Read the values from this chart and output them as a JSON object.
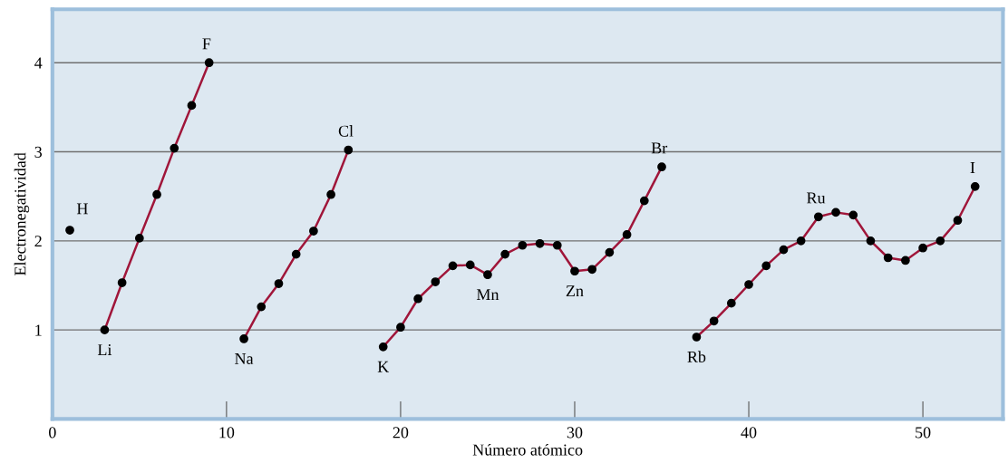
{
  "chart_data": {
    "type": "line",
    "xlabel": "Número atómico",
    "ylabel": "Electronegatividad",
    "xlim": [
      0,
      54.6
    ],
    "ylim": [
      0,
      4.6
    ],
    "xticks": [
      0,
      10,
      20,
      30,
      40,
      50
    ],
    "yticks": [
      1,
      2,
      3,
      4
    ],
    "grid": "y",
    "marker": "circle",
    "line_style": "solid",
    "series": [
      {
        "color": "#000000",
        "x": [
          1
        ],
        "values": [
          2.12
        ]
      },
      {
        "color": "#a0163a",
        "x": [
          3,
          4,
          5,
          6,
          7,
          8,
          9
        ],
        "values": [
          1.0,
          1.53,
          2.03,
          2.52,
          3.04,
          3.52,
          4.0
        ]
      },
      {
        "color": "#a0163a",
        "x": [
          11,
          12,
          13,
          14,
          15,
          16,
          17
        ],
        "values": [
          0.9,
          1.26,
          1.52,
          1.85,
          2.11,
          2.52,
          3.02
        ]
      },
      {
        "color": "#a0163a",
        "x": [
          19,
          20,
          21,
          22,
          23,
          24,
          25,
          26,
          27,
          28,
          29,
          30,
          31,
          32,
          33,
          34,
          35
        ],
        "values": [
          0.81,
          1.03,
          1.35,
          1.54,
          1.72,
          1.73,
          1.62,
          1.85,
          1.95,
          1.97,
          1.95,
          1.66,
          1.68,
          1.87,
          2.07,
          2.45,
          2.83
        ]
      },
      {
        "color": "#a0163a",
        "x": [
          37,
          38,
          39,
          40,
          41,
          42,
          43,
          44,
          45,
          46,
          47,
          48,
          49,
          50,
          51,
          52,
          53
        ],
        "values": [
          0.92,
          1.1,
          1.3,
          1.51,
          1.72,
          1.9,
          2.0,
          2.27,
          2.32,
          2.29,
          2.0,
          1.81,
          1.78,
          1.92,
          2.0,
          2.23,
          2.61
        ]
      }
    ],
    "annotations": [
      {
        "text": "H",
        "x": 1,
        "y": 2.12
      },
      {
        "text": "Li",
        "x": 3,
        "y": 1.0
      },
      {
        "text": "F",
        "x": 9,
        "y": 4.0
      },
      {
        "text": "Na",
        "x": 11,
        "y": 0.9
      },
      {
        "text": "Cl",
        "x": 17,
        "y": 3.02
      },
      {
        "text": "K",
        "x": 19,
        "y": 0.81
      },
      {
        "text": "Mn",
        "x": 25,
        "y": 1.62
      },
      {
        "text": "Zn",
        "x": 30,
        "y": 1.66
      },
      {
        "text": "Br",
        "x": 35,
        "y": 2.83
      },
      {
        "text": "Rb",
        "x": 37,
        "y": 0.92
      },
      {
        "text": "Ru",
        "x": 44,
        "y": 2.27
      },
      {
        "text": "I",
        "x": 53,
        "y": 2.61
      }
    ]
  }
}
